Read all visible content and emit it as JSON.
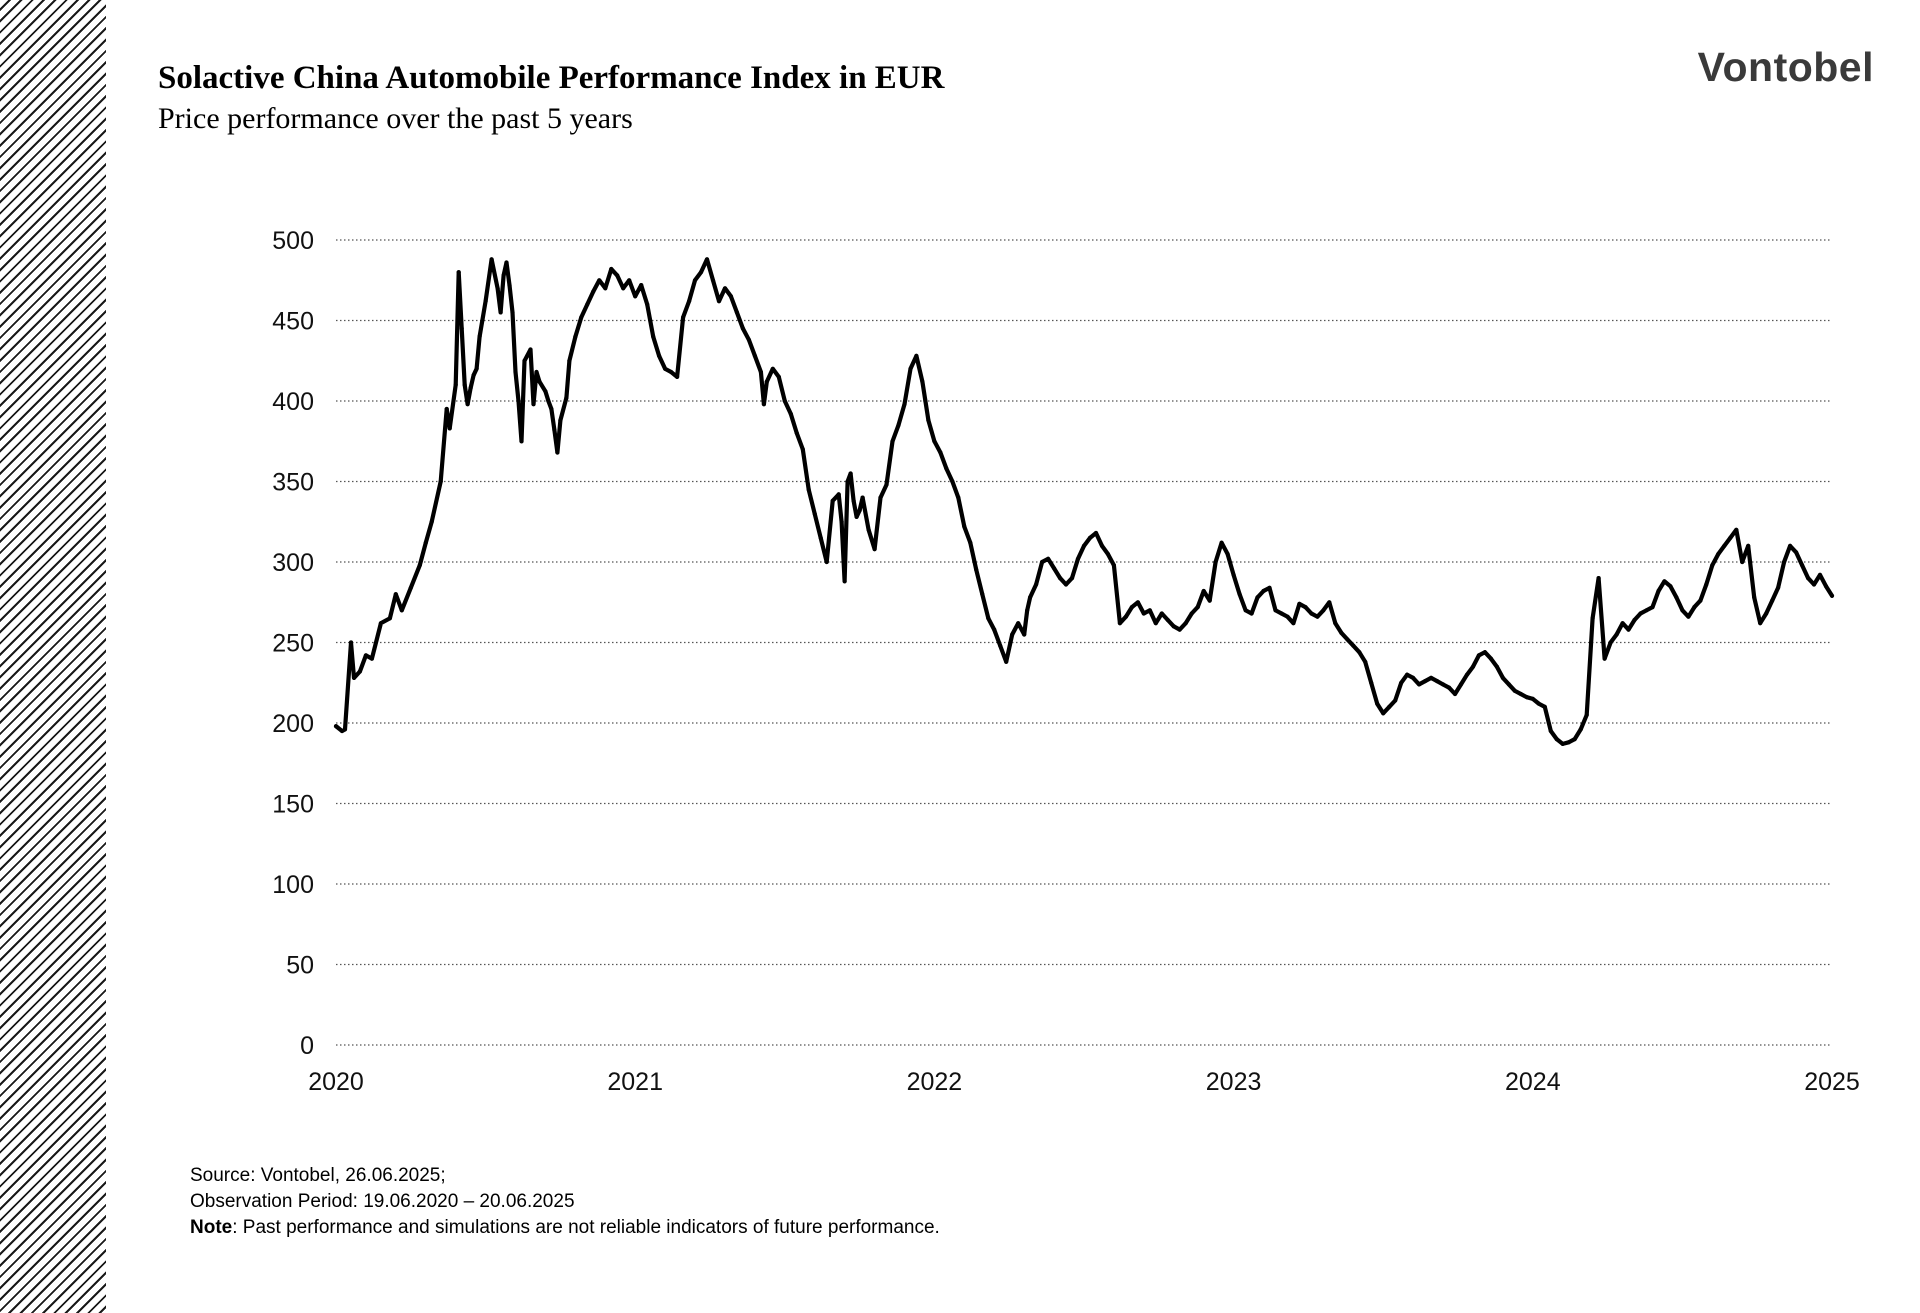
{
  "header": {
    "title": "Solactive China Automobile Performance Index in EUR",
    "subtitle": "Price performance over the past 5 years",
    "logo": "Vontobel"
  },
  "chart_data": {
    "type": "line",
    "title": "Solactive China Automobile Performance Index in EUR",
    "subtitle": "Price performance over the past 5 years",
    "xlabel": "",
    "ylabel": "",
    "xlim": [
      2020,
      2025
    ],
    "ylim": [
      0,
      500
    ],
    "yticks": [
      0,
      50,
      100,
      150,
      200,
      250,
      300,
      350,
      400,
      450,
      500
    ],
    "xticks": [
      "2020",
      "2021",
      "2022",
      "2023",
      "2024",
      "2025"
    ],
    "grid": "horizontal dotted",
    "line_color": "#000000",
    "series": [
      {
        "x": [
          2020.0,
          2020.02,
          2020.03,
          2020.05,
          2020.06,
          2020.08,
          2020.1,
          2020.12,
          2020.15,
          2020.18,
          2020.2,
          2020.22,
          2020.25,
          2020.28,
          2020.3,
          2020.32,
          2020.35,
          2020.37,
          2020.38,
          2020.4,
          2020.41,
          2020.42,
          2020.43,
          2020.44,
          2020.45,
          2020.46,
          2020.47,
          2020.48,
          2020.5,
          2020.52,
          2020.54,
          2020.55,
          2020.56,
          2020.57,
          2020.58,
          2020.59,
          2020.6,
          2020.61,
          2020.62,
          2020.63,
          2020.65,
          2020.66,
          2020.67,
          2020.68,
          2020.7,
          2020.71,
          2020.72,
          2020.73,
          2020.74,
          2020.75,
          2020.77,
          2020.78,
          2020.8,
          2020.82,
          2020.84,
          2020.86,
          2020.88,
          2020.9,
          2020.92,
          2020.94,
          2020.96,
          2020.98,
          2021.0,
          2021.02,
          2021.04,
          2021.06,
          2021.08,
          2021.1,
          2021.12,
          2021.14,
          2021.16,
          2021.18,
          2021.2,
          2021.22,
          2021.24,
          2021.26,
          2021.28,
          2021.3,
          2021.32,
          2021.34,
          2021.36,
          2021.38,
          2021.4,
          2021.42,
          2021.43,
          2021.44,
          2021.46,
          2021.48,
          2021.5,
          2021.52,
          2021.54,
          2021.56,
          2021.58,
          2021.6,
          2021.62,
          2021.64,
          2021.66,
          2021.68,
          2021.69,
          2021.7,
          2021.71,
          2021.72,
          2021.73,
          2021.74,
          2021.75,
          2021.76,
          2021.78,
          2021.8,
          2021.82,
          2021.84,
          2021.86,
          2021.88,
          2021.9,
          2021.92,
          2021.94,
          2021.96,
          2021.97,
          2021.98,
          2022.0,
          2022.02,
          2022.04,
          2022.06,
          2022.08,
          2022.1,
          2022.12,
          2022.14,
          2022.16,
          2022.18,
          2022.2,
          2022.22,
          2022.24,
          2022.26,
          2022.28,
          2022.3,
          2022.31,
          2022.32,
          2022.34,
          2022.36,
          2022.38,
          2022.4,
          2022.42,
          2022.44,
          2022.46,
          2022.48,
          2022.5,
          2022.52,
          2022.54,
          2022.56,
          2022.58,
          2022.6,
          2022.62,
          2022.64,
          2022.66,
          2022.68,
          2022.7,
          2022.72,
          2022.74,
          2022.76,
          2022.78,
          2022.8,
          2022.82,
          2022.84,
          2022.86,
          2022.88,
          2022.9,
          2022.92,
          2022.94,
          2022.96,
          2022.98,
          2023.0,
          2023.02,
          2023.04,
          2023.06,
          2023.08,
          2023.1,
          2023.12,
          2023.14,
          2023.16,
          2023.18,
          2023.2,
          2023.22,
          2023.24,
          2023.26,
          2023.28,
          2023.3,
          2023.32,
          2023.34,
          2023.36,
          2023.38,
          2023.4,
          2023.42,
          2023.44,
          2023.46,
          2023.48,
          2023.5,
          2023.52,
          2023.54,
          2023.56,
          2023.58,
          2023.6,
          2023.62,
          2023.64,
          2023.66,
          2023.68,
          2023.7,
          2023.72,
          2023.74,
          2023.76,
          2023.78,
          2023.8,
          2023.82,
          2023.84,
          2023.86,
          2023.88,
          2023.9,
          2023.92,
          2023.94,
          2023.96,
          2023.98,
          2024.0,
          2024.02,
          2024.04,
          2024.06,
          2024.08,
          2024.1,
          2024.12,
          2024.14,
          2024.16,
          2024.18,
          2024.2,
          2024.22,
          2024.24,
          2024.26,
          2024.28,
          2024.3,
          2024.32,
          2024.34,
          2024.36,
          2024.38,
          2024.4,
          2024.42,
          2024.44,
          2024.46,
          2024.48,
          2024.5,
          2024.52,
          2024.54,
          2024.56,
          2024.58,
          2024.6,
          2024.62,
          2024.64,
          2024.66,
          2024.68,
          2024.7,
          2024.72,
          2024.74,
          2024.76,
          2024.78,
          2024.8,
          2024.82,
          2024.84,
          2024.86,
          2024.88,
          2024.9,
          2024.92,
          2024.94,
          2024.96,
          2024.98,
          2025.0
        ],
        "values": [
          198,
          195,
          196,
          250,
          228,
          232,
          242,
          240,
          262,
          265,
          280,
          270,
          284,
          298,
          312,
          325,
          350,
          395,
          383,
          410,
          480,
          445,
          410,
          398,
          408,
          416,
          420,
          440,
          462,
          488,
          470,
          455,
          478,
          486,
          472,
          455,
          418,
          400,
          375,
          425,
          432,
          398,
          418,
          412,
          406,
          400,
          395,
          382,
          368,
          388,
          402,
          425,
          440,
          452,
          460,
          468,
          475,
          470,
          482,
          478,
          470,
          475,
          465,
          472,
          460,
          440,
          428,
          420,
          418,
          415,
          452,
          462,
          475,
          480,
          488,
          475,
          462,
          470,
          465,
          455,
          445,
          438,
          428,
          418,
          398,
          412,
          420,
          415,
          400,
          392,
          380,
          370,
          345,
          330,
          315,
          300,
          338,
          342,
          325,
          288,
          350,
          355,
          338,
          328,
          332,
          340,
          320,
          308,
          340,
          348,
          375,
          385,
          398,
          420,
          428,
          412,
          400,
          388,
          375,
          368,
          358,
          350,
          340,
          322,
          312,
          295,
          280,
          265,
          258,
          248,
          238,
          255,
          262,
          255,
          270,
          278,
          286,
          300,
          302,
          296,
          290,
          286,
          290,
          302,
          310,
          315,
          318,
          310,
          305,
          298,
          262,
          266,
          272,
          275,
          268,
          270,
          262,
          268,
          264,
          260,
          258,
          262,
          268,
          272,
          282,
          276,
          300,
          312,
          305,
          292,
          280,
          270,
          268,
          278,
          282,
          284,
          270,
          268,
          266,
          262,
          274,
          272,
          268,
          266,
          270,
          275,
          262,
          256,
          252,
          248,
          244,
          238,
          225,
          212,
          206,
          210,
          214,
          225,
          230,
          228,
          224,
          226,
          228,
          226,
          224,
          222,
          218,
          224,
          230,
          235,
          242,
          244,
          240,
          235,
          228,
          224,
          220,
          218,
          216,
          215,
          212,
          210,
          195,
          190,
          187,
          188,
          190,
          196,
          205,
          265,
          290,
          240,
          250,
          255,
          262,
          258,
          264,
          268,
          270,
          272,
          282,
          288,
          285,
          278,
          270,
          266,
          272,
          276,
          286,
          298,
          305,
          310,
          315,
          320,
          300,
          310,
          278,
          262,
          268,
          276,
          284,
          300,
          310,
          306,
          298,
          290,
          286,
          292,
          285,
          279
        ]
      }
    ]
  },
  "footer": {
    "source": "Source: Vontobel, 26.06.2025;",
    "period": "Observation Period: 19.06.2020 – 20.06.2025",
    "note_label": "Note",
    "note_text": ": Past performance and simulations are not reliable indicators of future performance."
  }
}
